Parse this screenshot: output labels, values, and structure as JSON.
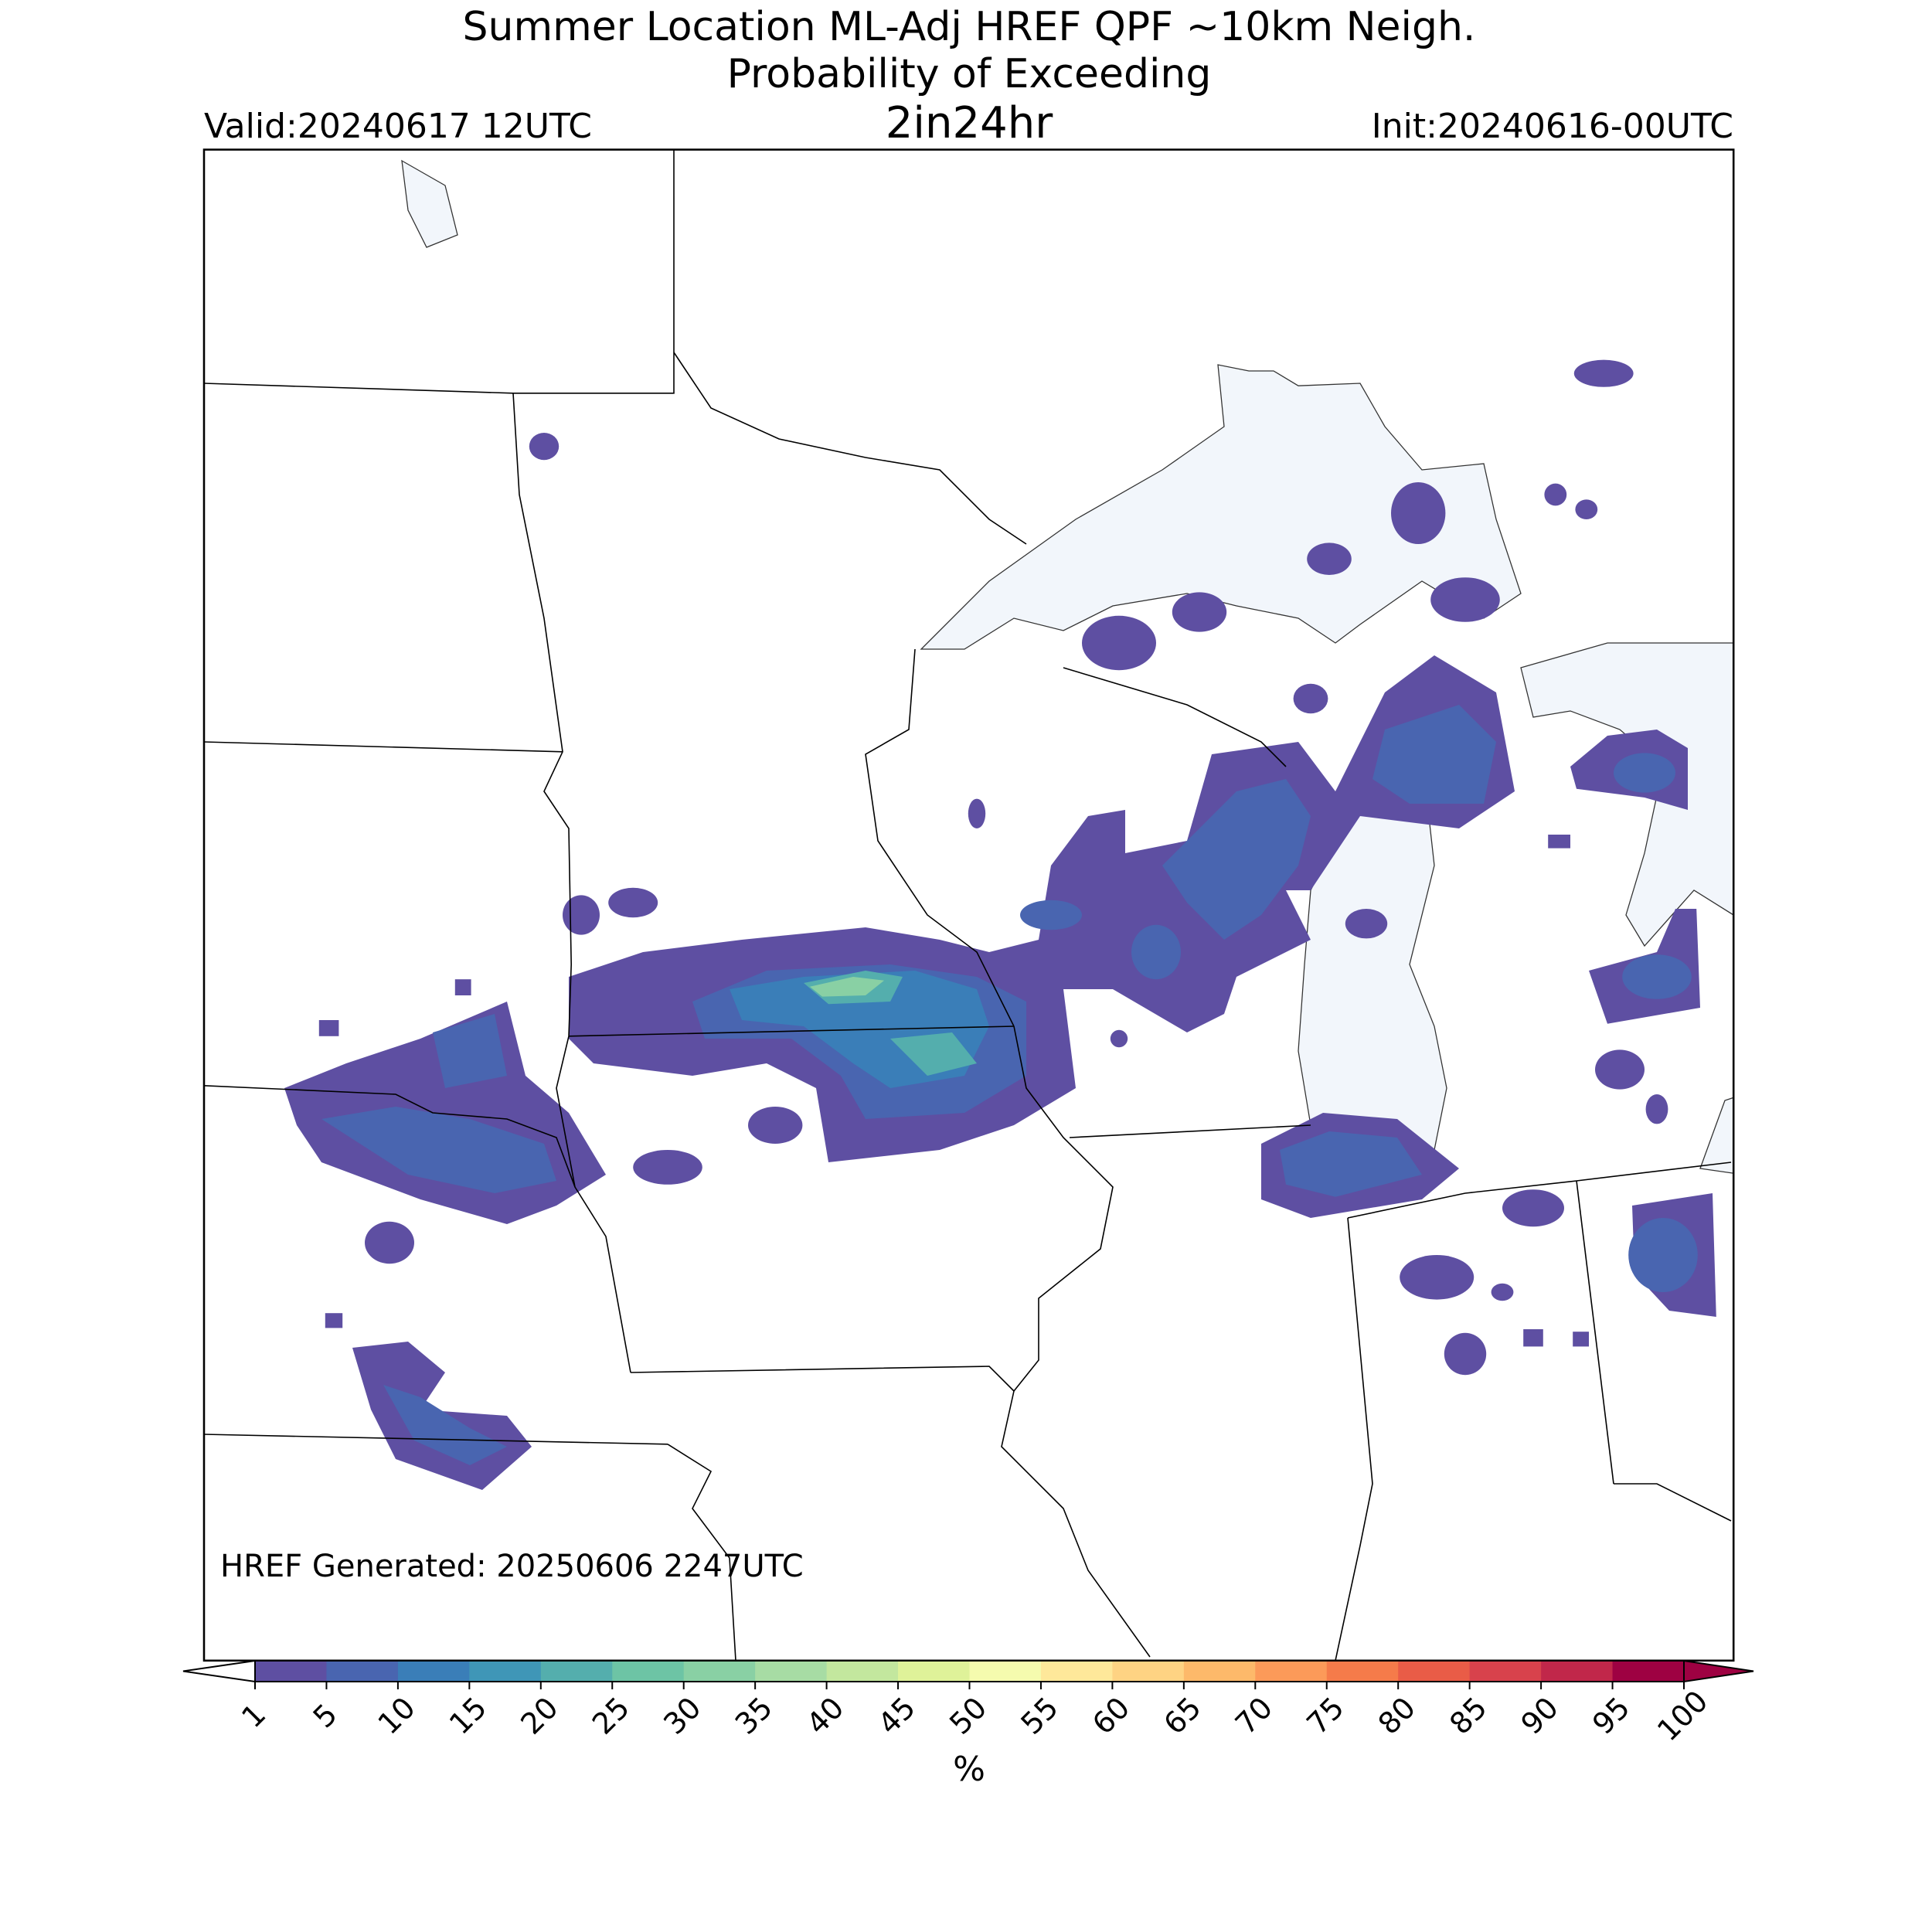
{
  "title": [
    "Summer Location ML-Adj HREF QPF ~10km Neigh.",
    "Probability of Exceeding"
  ],
  "threshold": "2in24hr",
  "valid": "Valid:20240617 12UTC",
  "init": "Init:20240616-00UTC",
  "generated": "HREF Generated: 20250606 2247UTC",
  "colorbar": {
    "label": "%",
    "ticks": [
      1,
      5,
      10,
      15,
      20,
      25,
      30,
      35,
      40,
      45,
      50,
      55,
      60,
      65,
      70,
      75,
      80,
      85,
      90,
      95,
      100
    ],
    "colors": [
      "#5e4fa2",
      "#4965b0",
      "#3a7eb8",
      "#3f96b7",
      "#54aead",
      "#6dc4a5",
      "#89d0a4",
      "#a7dca4",
      "#c3e79e",
      "#dff299",
      "#f5fbae",
      "#fee89a",
      "#fed383",
      "#fdb96a",
      "#fc9a59",
      "#f57b4a",
      "#e95c47",
      "#d8424c",
      "#c1274a",
      "#9e0142"
    ],
    "over_color": "#9e0142"
  }
}
